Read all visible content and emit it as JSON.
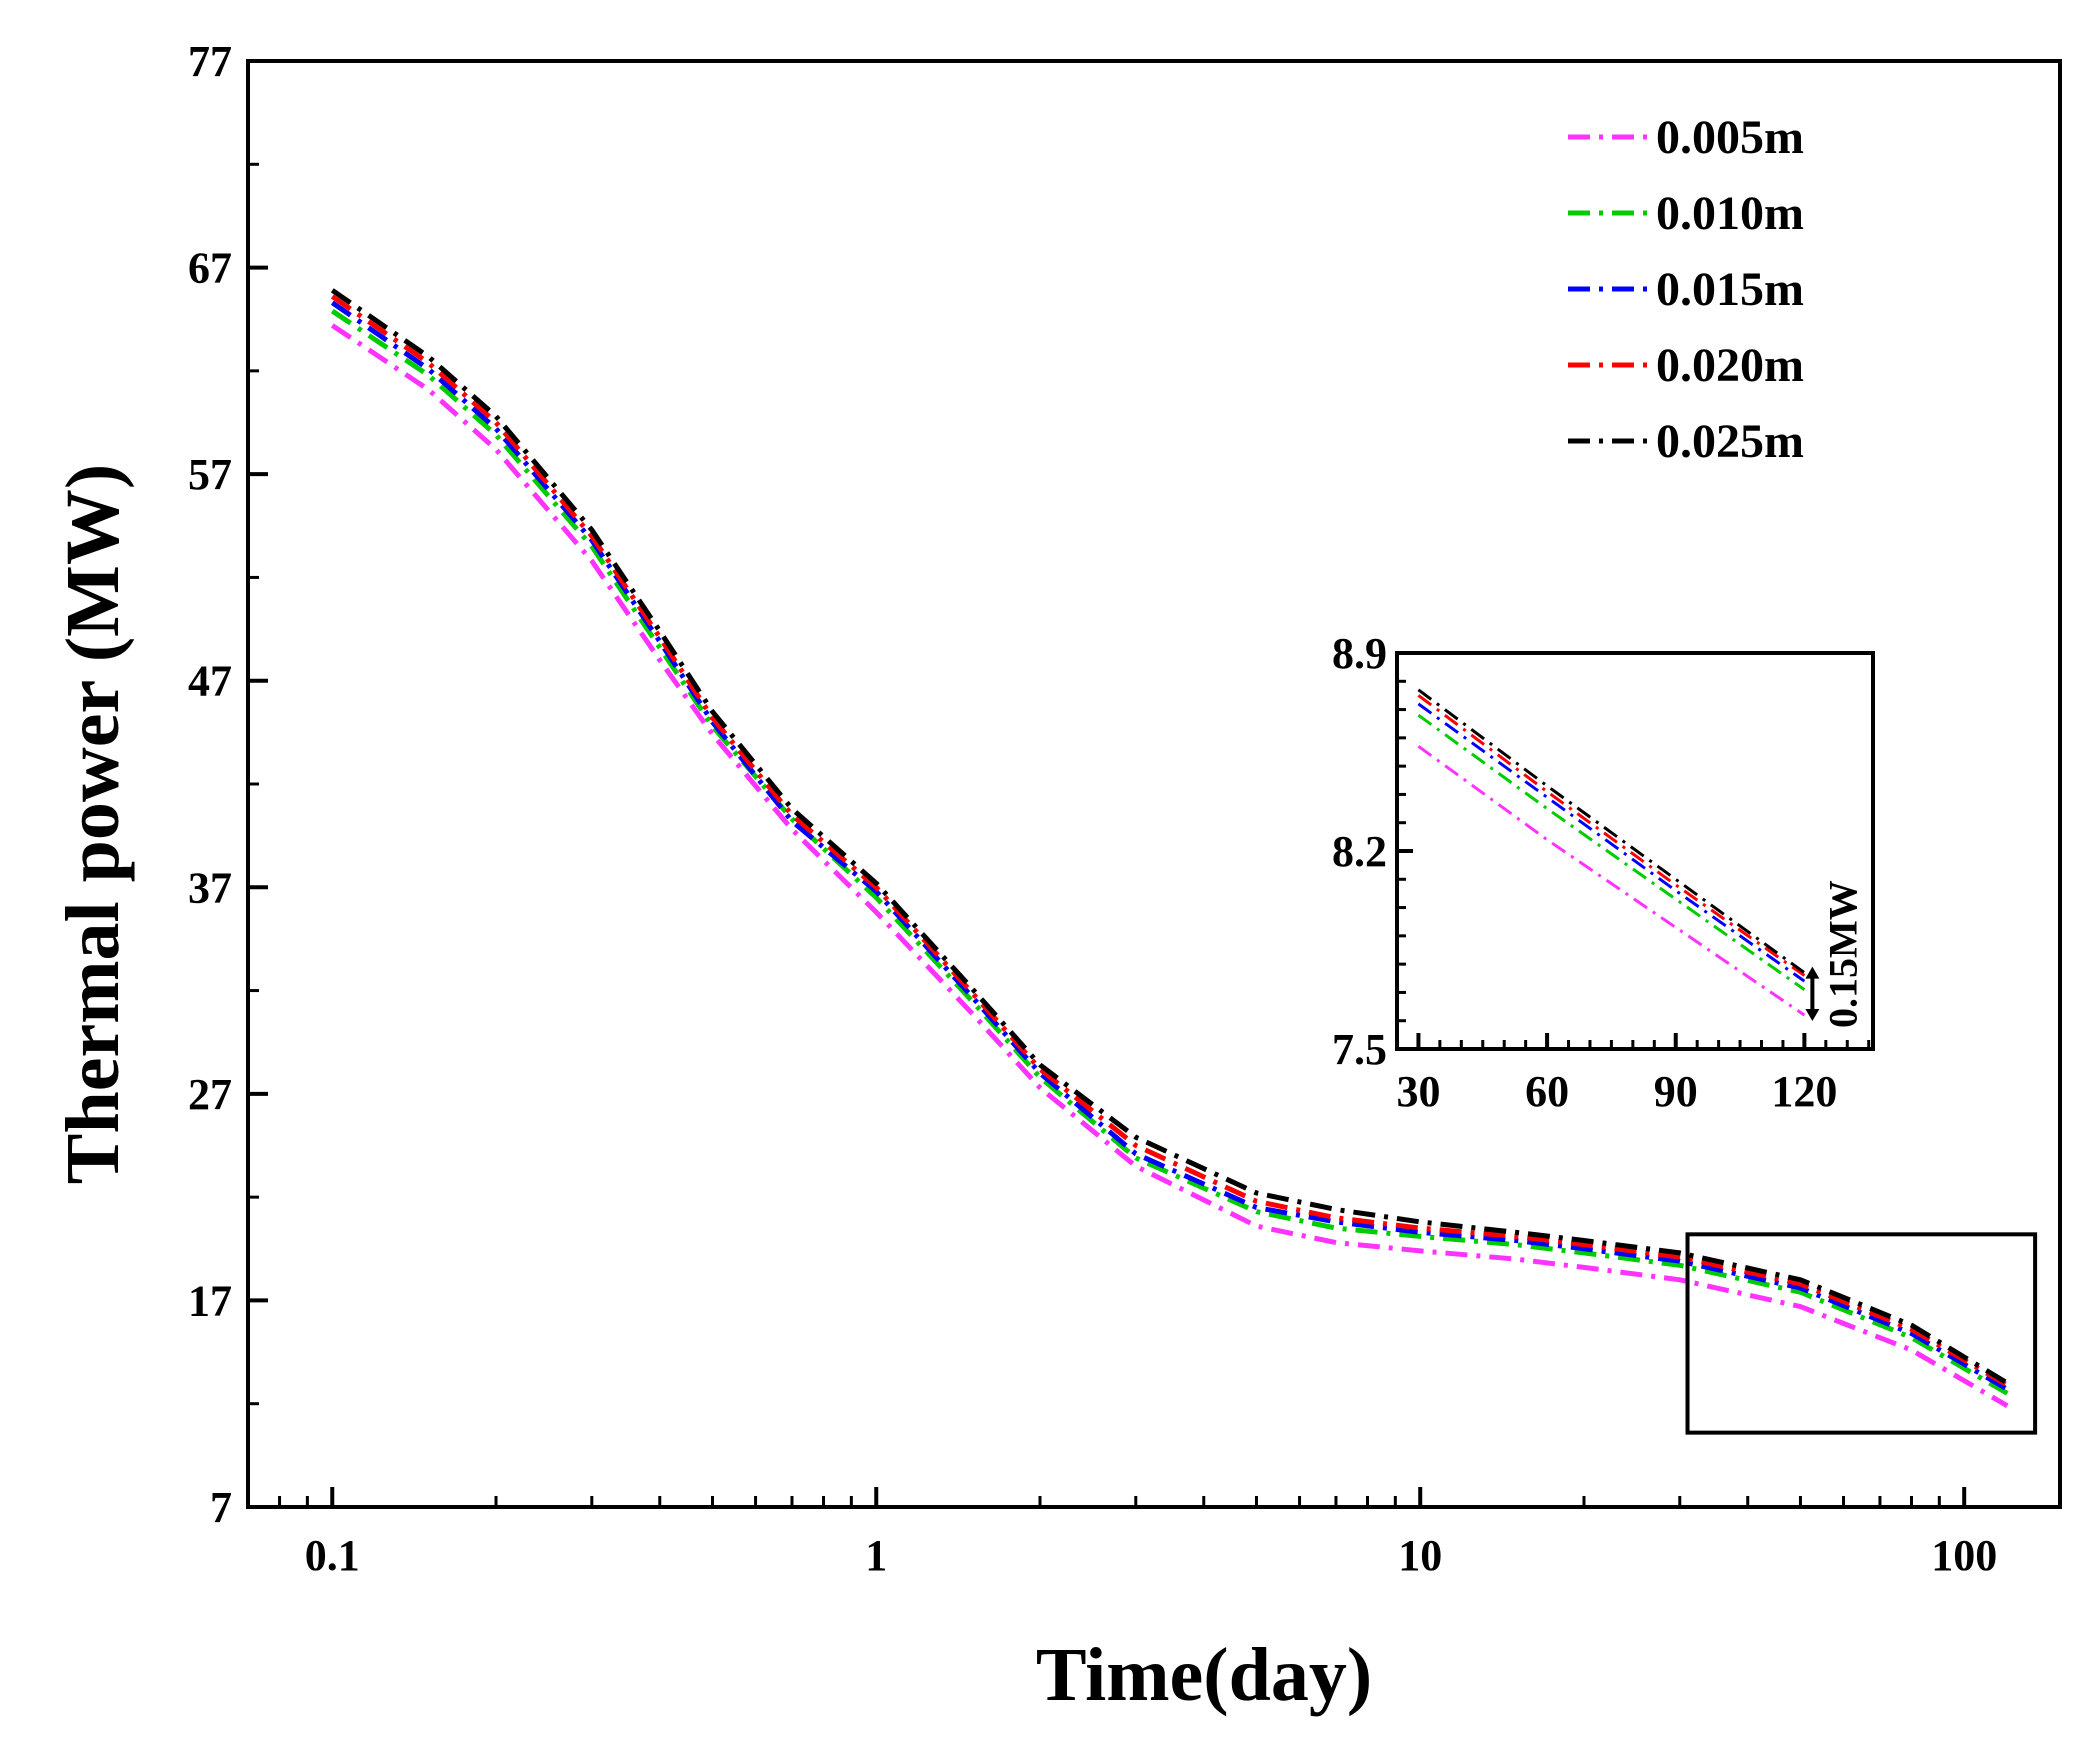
{
  "chart_data": [
    {
      "type": "line",
      "title": "",
      "xlabel": "Time(day)",
      "ylabel": "Thermal power (MW)",
      "xscale": "log",
      "xlim": [
        0.07,
        150
      ],
      "ylim": [
        7,
        77
      ],
      "xticks": [
        0.1,
        1,
        10,
        100
      ],
      "xtick_labels": [
        "0.1",
        "1",
        "10",
        "100"
      ],
      "yticks": [
        7,
        17,
        27,
        37,
        47,
        57,
        67,
        77
      ],
      "ytick_labels": [
        "7",
        "17",
        "27",
        "37",
        "47",
        "57",
        "67",
        "77"
      ],
      "grid": false,
      "legend_position": "top-right",
      "line_style": "dash-dot",
      "x": [
        0.1,
        0.15,
        0.2,
        0.3,
        0.4,
        0.5,
        0.7,
        1,
        1.5,
        2,
        3,
        5,
        7,
        10,
        15,
        20,
        30,
        50,
        80,
        120
      ],
      "series": [
        {
          "name": "0.005m",
          "color": "#ff33ff",
          "values": [
            64.2,
            61.1,
            58.2,
            52.8,
            48.0,
            44.4,
            39.8,
            35.8,
            30.9,
            27.3,
            23.5,
            20.6,
            19.8,
            19.4,
            19.0,
            18.6,
            18.0,
            16.7,
            14.6,
            11.9
          ]
        },
        {
          "name": "0.010m",
          "color": "#00cc00",
          "values": [
            64.9,
            61.8,
            58.9,
            53.5,
            48.6,
            44.8,
            40.3,
            36.5,
            31.5,
            27.8,
            23.9,
            21.3,
            20.5,
            20.1,
            19.7,
            19.3,
            18.7,
            17.4,
            15.2,
            12.5
          ]
        },
        {
          "name": "0.015m",
          "color": "#0000ff",
          "values": [
            65.3,
            62.1,
            59.2,
            53.8,
            48.9,
            45.0,
            40.2,
            36.8,
            31.7,
            28.0,
            24.1,
            21.5,
            20.8,
            20.3,
            19.9,
            19.5,
            18.9,
            17.6,
            15.4,
            12.7
          ]
        },
        {
          "name": "0.020m",
          "color": "#ff0000",
          "values": [
            65.6,
            62.4,
            59.5,
            54.0,
            49.1,
            45.2,
            40.5,
            37.0,
            31.9,
            28.2,
            24.5,
            21.8,
            21.0,
            20.5,
            20.1,
            19.7,
            19.1,
            17.8,
            15.6,
            12.9
          ]
        },
        {
          "name": "0.025m",
          "color": "#000000",
          "values": [
            65.9,
            62.7,
            59.8,
            54.3,
            49.4,
            45.5,
            40.8,
            37.2,
            32.1,
            28.4,
            24.9,
            22.2,
            21.4,
            20.8,
            20.3,
            19.9,
            19.3,
            18.0,
            15.8,
            13.0
          ]
        }
      ]
    },
    {
      "type": "line",
      "title": "",
      "xlabel": "",
      "ylabel": "",
      "xlim": [
        25,
        136
      ],
      "ylim": [
        7.5,
        8.9
      ],
      "xticks": [
        30,
        60,
        90,
        120
      ],
      "xtick_labels": [
        "30",
        "60",
        "90",
        "120"
      ],
      "yticks": [
        7.5,
        8.2,
        8.9
      ],
      "ytick_labels": [
        "7.5",
        "8.2",
        "8.9"
      ],
      "grid": false,
      "annotation": "0.15MW",
      "x": [
        30,
        60,
        90,
        120
      ],
      "series": [
        {
          "color": "#ff33ff",
          "values": [
            8.57,
            8.24,
            7.93,
            7.62
          ]
        },
        {
          "color": "#00cc00",
          "values": [
            8.68,
            8.35,
            8.03,
            7.71
          ]
        },
        {
          "color": "#0000ff",
          "values": [
            8.72,
            8.39,
            8.06,
            7.74
          ]
        },
        {
          "color": "#ff0000",
          "values": [
            8.75,
            8.41,
            8.08,
            7.76
          ]
        },
        {
          "color": "#000000",
          "values": [
            8.77,
            8.43,
            8.1,
            7.77
          ]
        }
      ]
    }
  ]
}
